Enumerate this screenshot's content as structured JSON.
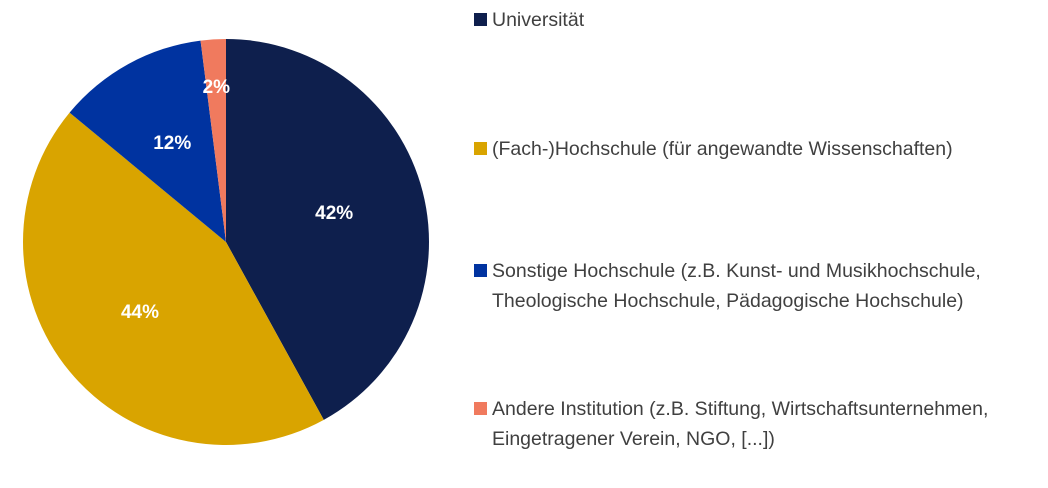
{
  "chart_data": {
    "type": "pie",
    "categories": [
      "Universität",
      "(Fach-)Hochschule (für angewandte Wissenschaften)",
      "Sonstige Hochschule (z.B. Kunst- und Musikhochschule, Theologische Hochschule, Pädagogische Hochschule)",
      "Andere Institution (z.B. Stiftung, Wirtschaftsunternehmen, Eingetragener Verein, NGO, [...])"
    ],
    "values": [
      42,
      44,
      12,
      2
    ],
    "value_labels": [
      "42%",
      "44%",
      "12%",
      "2%"
    ],
    "colors": [
      "#0e1f4d",
      "#d9a400",
      "#0033a0",
      "#f07a5e"
    ],
    "legend": "right"
  }
}
